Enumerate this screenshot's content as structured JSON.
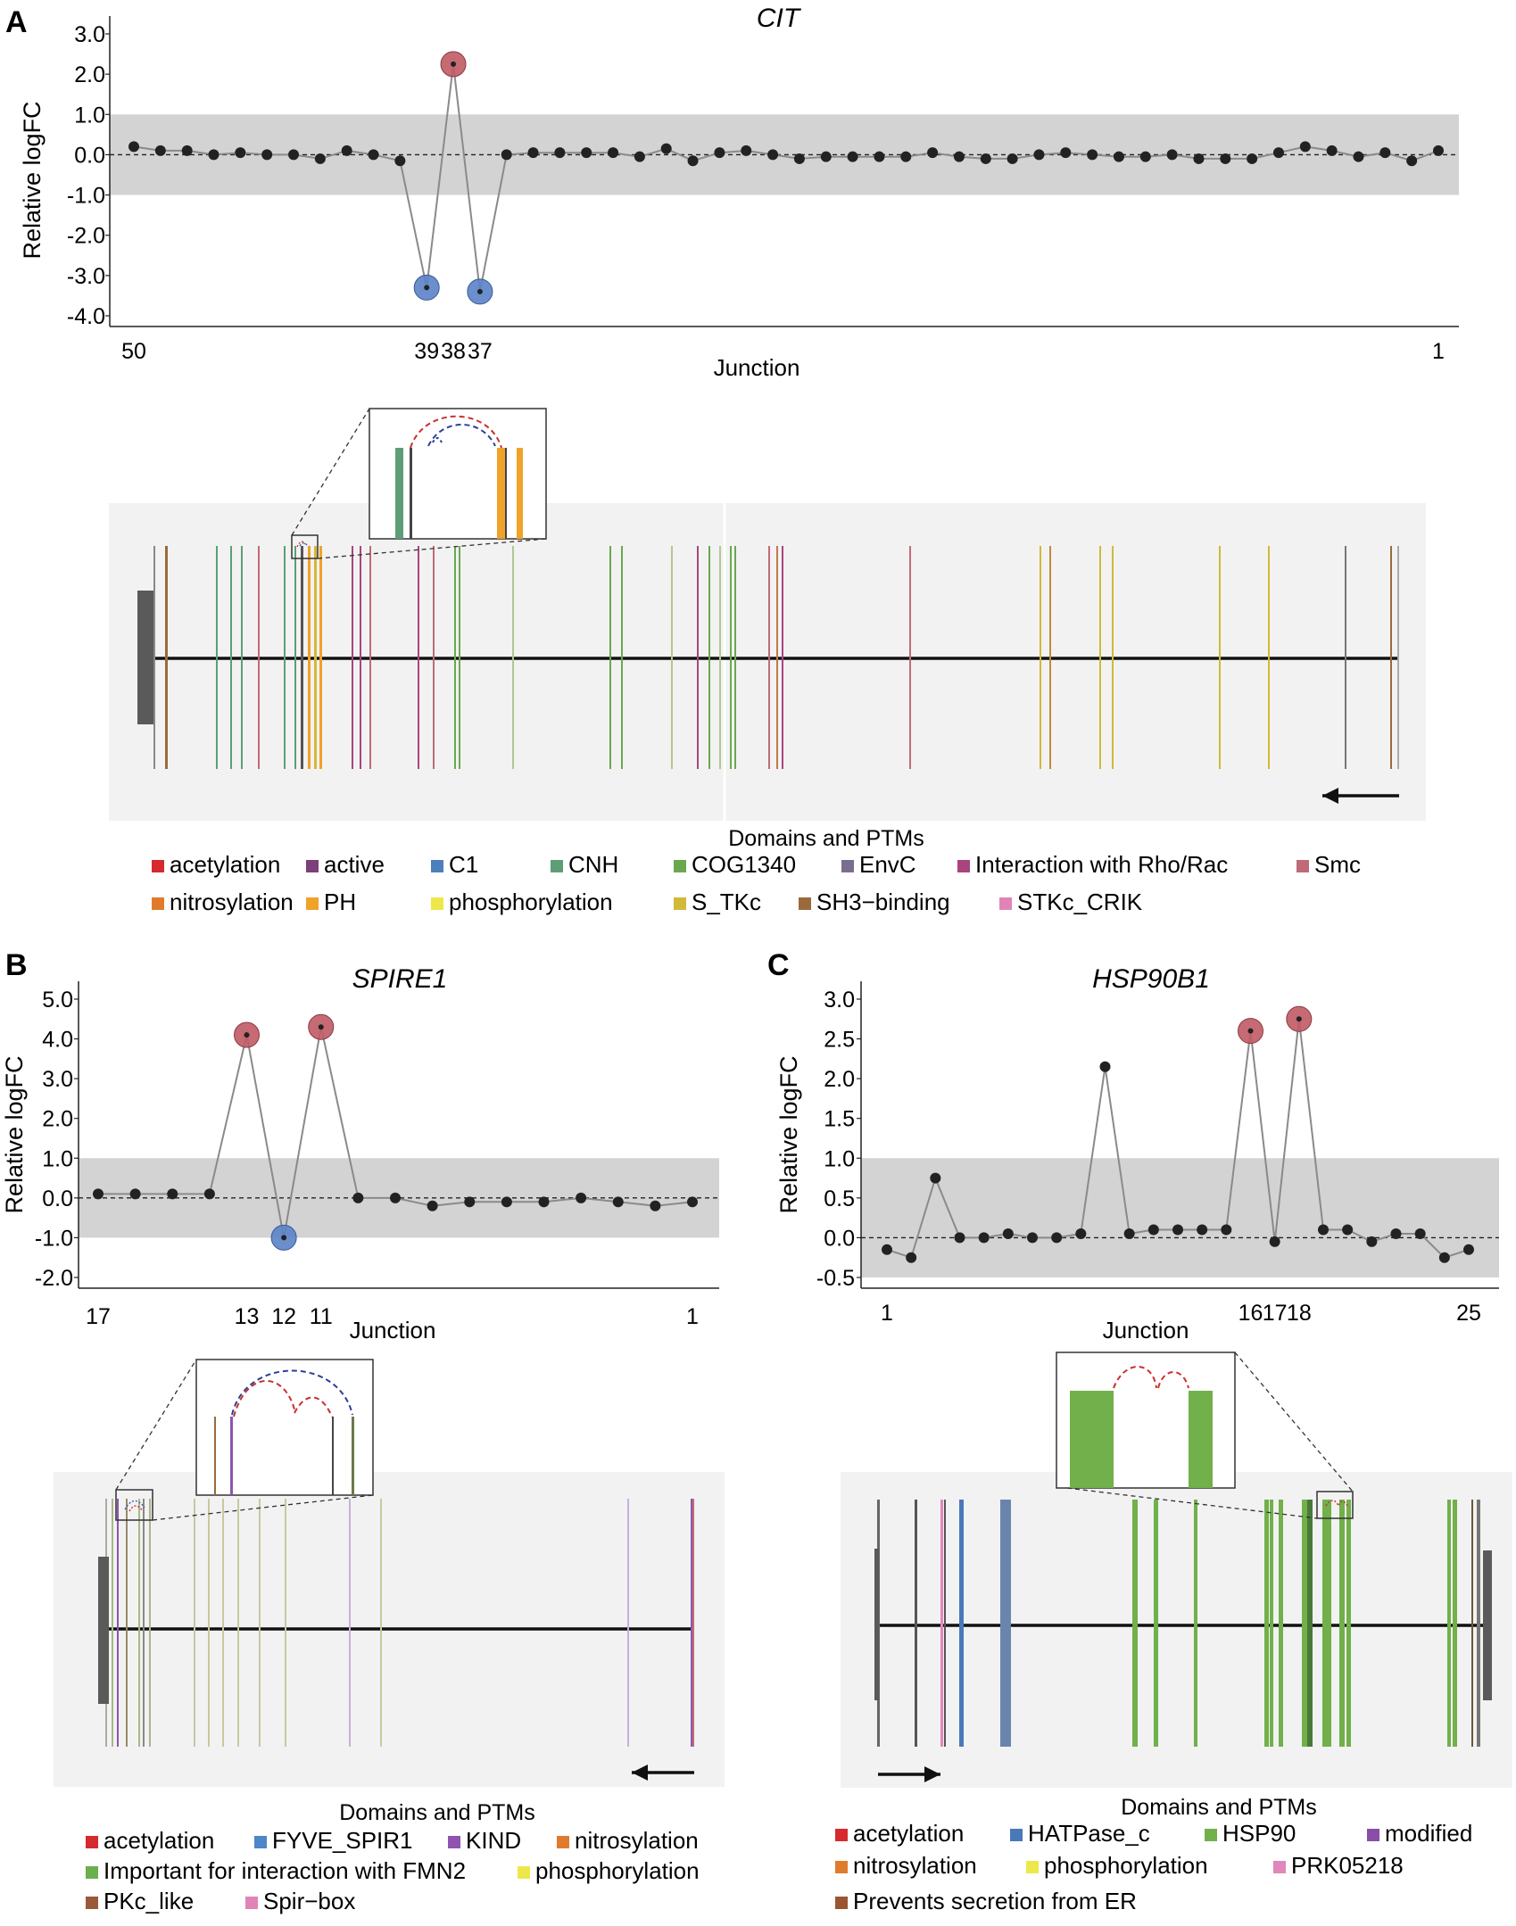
{
  "palette": {
    "acetylation": "#d62a2e",
    "active": "#7b3f7a",
    "C1": "#4d7fbf",
    "CNH": "#5e9e77",
    "COG1340": "#6aa84f",
    "EnvC": "#7a6e90",
    "Interaction with Rho/Rac": "#a8457f",
    "Smc": "#c06a78",
    "nitrosylation": "#e07b2e",
    "PH": "#f0a22a",
    "phosphorylation": "#ede84a",
    "S_TKc": "#d1b93a",
    "SH3-binding": "#9a6a3a",
    "STKc_CRIK": "#e283b8",
    "FYVE_SPIR1": "#4d86c9",
    "KIND": "#8e55b0",
    "Important for interaction with FMN2": "#6ab04c",
    "PKc_like": "#9a5a3a",
    "Spir-box": "#e283b8",
    "HATPase_c": "#4a78b8",
    "HSP90": "#71b04a",
    "modified": "#8a4ea8",
    "PRK05218": "#e088bb",
    "Prevents secretion from ER": "#9a5630",
    "up_marker": "#c05a64",
    "down_marker": "#5b83c6",
    "band": "#d3d3d3",
    "panel_bg": "#f2f2f2"
  },
  "panels": [
    {
      "letter": "A",
      "chart_data": {
        "type": "line",
        "title": "CIT",
        "xlabel": "Junction",
        "ylabel": "Relative logFC",
        "ylim": [
          -4.0,
          3.0
        ],
        "yticks": [
          "3.0",
          "2.0",
          "1.0",
          "0.0",
          "-1.0",
          "-2.0",
          "-3.0",
          "-4.0"
        ],
        "band": [
          -1.0,
          1.0
        ],
        "xtick_labels": [
          {
            "x": 1,
            "label": "50"
          },
          {
            "x": 12,
            "label": "39"
          },
          {
            "x": 13,
            "label": "38"
          },
          {
            "x": 14,
            "label": "37"
          },
          {
            "x": 50,
            "label": "1"
          }
        ],
        "x_count": 50,
        "values": [
          0.2,
          0.1,
          0.1,
          0.0,
          0.05,
          0.0,
          0.0,
          -0.1,
          0.1,
          0.0,
          -0.15,
          -3.3,
          2.25,
          -3.4,
          0.0,
          0.05,
          0.05,
          0.05,
          0.05,
          -0.05,
          0.15,
          -0.15,
          0.05,
          0.1,
          0.0,
          -0.1,
          -0.05,
          -0.05,
          -0.05,
          -0.05,
          0.05,
          -0.05,
          -0.1,
          -0.1,
          0.0,
          0.05,
          0.0,
          -0.05,
          -0.05,
          0.0,
          -0.1,
          -0.1,
          -0.1,
          0.05,
          0.2,
          0.1,
          -0.05,
          0.05,
          -0.15,
          0.1
        ],
        "highlight_up": [
          13
        ],
        "highlight_down": [
          12,
          14
        ]
      },
      "track_label": "Domains and PTMs",
      "direction": "reverse",
      "legend": [
        "acetylation",
        "active",
        "C1",
        "CNH",
        "COG1340",
        "EnvC",
        "Interaction with Rho/Rac",
        "Smc",
        "nitrosylation",
        "PH",
        "phosphorylation",
        "S_TKc",
        "SH3-binding",
        "STKc_CRIK"
      ],
      "legend_display": [
        "acetylation",
        "active",
        "C1",
        "CNH",
        "COG1340",
        "EnvC",
        "Interaction with Rho/Rac",
        "Smc",
        "nitrosylation",
        "PH",
        "phosphorylation",
        "S_TKc",
        "SH3−binding",
        "STKc_CRIK"
      ]
    },
    {
      "letter": "B",
      "chart_data": {
        "type": "line",
        "title": "SPIRE1",
        "xlabel": "Junction",
        "ylabel": "Relative logFC",
        "ylim": [
          -2.0,
          5.0
        ],
        "yticks": [
          "5.0",
          "4.0",
          "3.0",
          "2.0",
          "1.0",
          "0.0",
          "-1.0",
          "-2.0"
        ],
        "band": [
          -1.0,
          1.0
        ],
        "xtick_labels": [
          {
            "x": 1,
            "label": "17"
          },
          {
            "x": 5,
            "label": "13"
          },
          {
            "x": 6,
            "label": "12"
          },
          {
            "x": 7,
            "label": "11"
          },
          {
            "x": 17,
            "label": "1"
          }
        ],
        "x_count": 17,
        "values": [
          0.1,
          0.1,
          0.1,
          0.1,
          4.1,
          -1.0,
          4.3,
          0.0,
          0.0,
          -0.2,
          -0.1,
          -0.1,
          -0.1,
          0.0,
          -0.1,
          -0.2,
          -0.1
        ],
        "highlight_up": [
          5,
          7
        ],
        "highlight_down": [
          6
        ]
      },
      "track_label": "Domains and PTMs",
      "direction": "reverse",
      "legend": [
        "acetylation",
        "FYVE_SPIR1",
        "KIND",
        "nitrosylation",
        "Important for interaction with FMN2",
        "phosphorylation",
        "PKc_like",
        "Spir-box"
      ],
      "legend_display": [
        "acetylation",
        "FYVE_SPIR1",
        "KIND",
        "nitrosylation",
        "Important for interaction with FMN2",
        "phosphorylation",
        "PKc_like",
        "Spir−box"
      ]
    },
    {
      "letter": "C",
      "chart_data": {
        "type": "line",
        "title": "HSP90B1",
        "xlabel": "Junction",
        "ylabel": "Relative logFC",
        "ylim": [
          -0.5,
          3.0
        ],
        "yticks": [
          "3.0",
          "2.5",
          "2.0",
          "1.5",
          "1.0",
          "0.5",
          "0.0",
          "-0.5"
        ],
        "band": [
          -0.5,
          1.0
        ],
        "xtick_labels": [
          {
            "x": 1,
            "label": "1"
          },
          {
            "x": 16,
            "label": "16"
          },
          {
            "x": 17,
            "label": "17"
          },
          {
            "x": 18,
            "label": "18"
          },
          {
            "x": 25,
            "label": "25"
          }
        ],
        "x_count": 25,
        "values": [
          -0.15,
          -0.25,
          0.75,
          0.0,
          0.0,
          0.05,
          0.0,
          0.0,
          0.05,
          2.15,
          0.05,
          0.1,
          0.1,
          0.1,
          0.1,
          2.6,
          -0.05,
          2.75,
          0.1,
          0.1,
          -0.05,
          0.05,
          0.05,
          -0.25,
          -0.15
        ],
        "highlight_up": [
          16,
          18
        ],
        "highlight_down": []
      },
      "track_label": "Domains and PTMs",
      "direction": "forward",
      "legend": [
        "acetylation",
        "HATPase_c",
        "HSP90",
        "modified",
        "nitrosylation",
        "phosphorylation",
        "PRK05218",
        "Prevents secretion from ER"
      ],
      "legend_display": [
        "acetylation",
        "HATPase_c",
        "HSP90",
        "modified",
        "nitrosylation",
        "phosphorylation",
        "PRK05218",
        "Prevents secretion from ER"
      ]
    }
  ]
}
